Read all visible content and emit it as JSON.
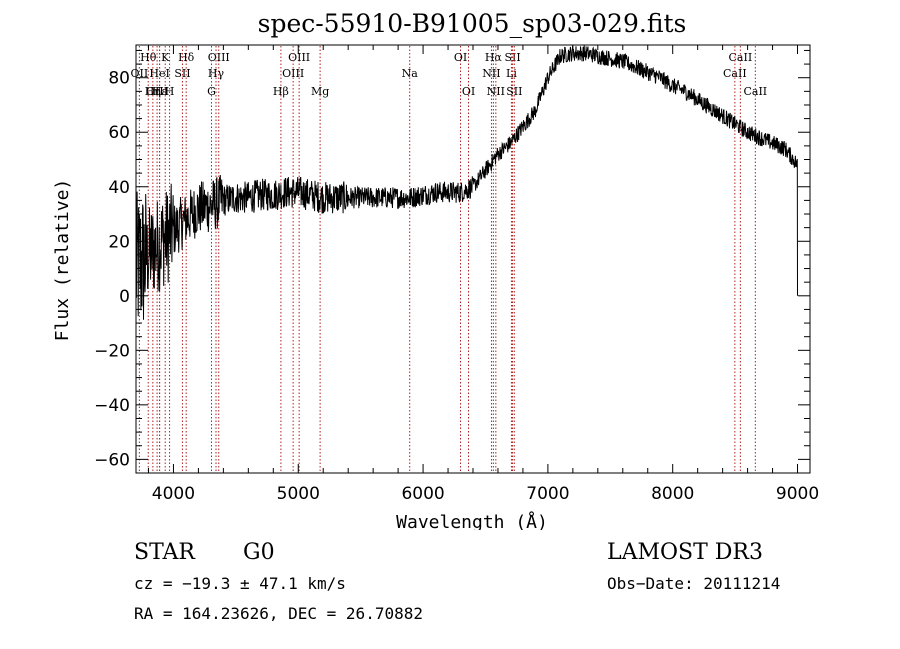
{
  "chart_data": {
    "type": "line",
    "title": "spec-55910-B91005_sp03-029.fits",
    "xlabel": "Wavelength (Å)",
    "ylabel": "Flux (relative)",
    "xlim": [
      3700,
      9100
    ],
    "ylim": [
      -65,
      92
    ],
    "xticks": [
      4000,
      5000,
      6000,
      7000,
      8000,
      9000
    ],
    "yticks": [
      -60,
      -40,
      -20,
      0,
      20,
      40,
      60,
      80
    ],
    "line_color": "#000000",
    "marker_color": "#b22222",
    "spectrum_anchors": {
      "wavelength": [
        3700,
        3800,
        3900,
        4000,
        4100,
        4200,
        4300,
        4400,
        4500,
        4600,
        4700,
        4800,
        4900,
        5000,
        5100,
        5200,
        5300,
        5400,
        5500,
        5600,
        5700,
        5800,
        5900,
        6000,
        6100,
        6200,
        6300,
        6400,
        6500,
        6600,
        6700,
        6800,
        6900,
        7000,
        7100,
        7200,
        7300,
        7400,
        7500,
        7600,
        7700,
        7800,
        7900,
        8000,
        8100,
        8200,
        8300,
        8400,
        8500,
        8600,
        8700,
        8800,
        8900,
        9000
      ],
      "flux": [
        10,
        15,
        20,
        24,
        28,
        32,
        33,
        35,
        36,
        36,
        37,
        37,
        38,
        38,
        37,
        36,
        36,
        36,
        36,
        36,
        36,
        36,
        36,
        37,
        38,
        38,
        38,
        40,
        46,
        52,
        56,
        62,
        68,
        80,
        88,
        89,
        89,
        88,
        87,
        86,
        84,
        82,
        80,
        77,
        75,
        72,
        69,
        66,
        63,
        60,
        58,
        56,
        54,
        48
      ]
    },
    "line_markers": [
      {
        "label": "Hθ",
        "x": 3798,
        "row": 0
      },
      {
        "label": "OII",
        "x": 3727,
        "row": 1
      },
      {
        "label": "OIII",
        "x": 3869,
        "row": 2
      },
      {
        "label": "Hε",
        "x": 3889,
        "row": 2
      },
      {
        "label": "K",
        "x": 3934,
        "row": 0
      },
      {
        "label": "HeI",
        "x": 3889,
        "row": 1
      },
      {
        "label": "H",
        "x": 3969,
        "row": 2
      },
      {
        "label": "Hη",
        "x": 3835,
        "row": 2
      },
      {
        "label": "Hδ",
        "x": 4102,
        "row": 0
      },
      {
        "label": "SII",
        "x": 4072,
        "row": 1
      },
      {
        "label": "OIII",
        "x": 4363,
        "row": 0
      },
      {
        "label": "Hγ",
        "x": 4341,
        "row": 1
      },
      {
        "label": "G",
        "x": 4305,
        "row": 2
      },
      {
        "label": "OIII",
        "x": 5007,
        "row": 0
      },
      {
        "label": "OIII",
        "x": 4959,
        "row": 1
      },
      {
        "label": "Hβ",
        "x": 4861,
        "row": 2
      },
      {
        "label": "Mg",
        "x": 5175,
        "row": 2
      },
      {
        "label": "Na",
        "x": 5893,
        "row": 1
      },
      {
        "label": "OI",
        "x": 6300,
        "row": 0
      },
      {
        "label": "OI",
        "x": 6364,
        "row": 2
      },
      {
        "label": "Hα",
        "x": 6563,
        "row": 0
      },
      {
        "label": "NII",
        "x": 6548,
        "row": 1
      },
      {
        "label": "NII",
        "x": 6583,
        "row": 2
      },
      {
        "label": "SII",
        "x": 6717,
        "row": 0
      },
      {
        "label": "Li",
        "x": 6708,
        "row": 1
      },
      {
        "label": "SII",
        "x": 6731,
        "row": 2
      },
      {
        "label": "CaII",
        "x": 8542,
        "row": 0
      },
      {
        "label": "CaII",
        "x": 8498,
        "row": 1
      },
      {
        "label": "CaII",
        "x": 8662,
        "row": 2
      }
    ]
  },
  "info": {
    "class_label": "STAR",
    "subclass_label": "G0",
    "survey": "LAMOST DR3",
    "redshift": "cz = −19.3 ± 47.1 km/s",
    "obs_date": "Obs−Date: 20111214",
    "coords": "RA = 164.23626, DEC =  26.70882"
  }
}
